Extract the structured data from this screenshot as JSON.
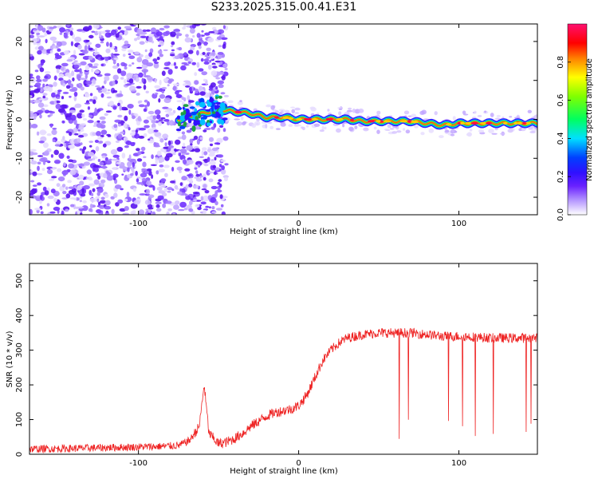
{
  "title": "S233.2025.315.00.41.E31",
  "colors": {
    "snr_line": "#ee2222",
    "spectrogram_ridge": "#22cc44"
  },
  "chart_data": [
    {
      "type": "heatmap",
      "xlabel": "Height of straight line (km)",
      "ylabel": "Frequency (Hz)",
      "xlim": [
        -168,
        149
      ],
      "ylim": [
        -24.5,
        24.5
      ],
      "xticks": [
        -100,
        0,
        100
      ],
      "yticks": [
        -20,
        -10,
        0,
        10,
        20
      ],
      "colorbar": {
        "label": "Normalized spectral amplitude",
        "range": [
          0.0,
          1.0
        ],
        "ticks": [
          0.0,
          0.2,
          0.4,
          0.6,
          0.8
        ],
        "colormap": [
          "#ffffff",
          "#a070ff",
          "#4400ff",
          "#0000ff",
          "#00ffff",
          "#00ff00",
          "#ffff00",
          "#ff0000",
          "#ff0080"
        ]
      },
      "ridge": {
        "x": [
          -75,
          -60,
          -50,
          -40,
          -30,
          -20,
          -10,
          0,
          10,
          20,
          30,
          40,
          50,
          60,
          70,
          80,
          90,
          100,
          110,
          120,
          130,
          140,
          149
        ],
        "frequency": [
          0,
          1.5,
          2.5,
          2,
          1.5,
          0.5,
          0.5,
          0,
          0,
          0,
          0,
          -0.5,
          -0.5,
          -0.5,
          -0.5,
          -1,
          -1.5,
          -1,
          -1,
          -1,
          -1,
          -1,
          -1
        ]
      },
      "noise_region_x": [
        -168,
        -45
      ]
    },
    {
      "type": "line",
      "xlabel": "Height of straight line (km)",
      "ylabel": "SNR (10 * v/v)",
      "xlim": [
        -168,
        149
      ],
      "ylim": [
        0,
        550
      ],
      "xticks": [
        -100,
        0,
        100
      ],
      "yticks": [
        0,
        100,
        200,
        300,
        400,
        500
      ],
      "series": [
        {
          "x": [
            -168,
            -150,
            -130,
            -110,
            -90,
            -75,
            -68,
            -62,
            -59,
            -56,
            -50,
            -45,
            -40,
            -35,
            -30,
            -25,
            -20,
            -15,
            -10,
            -5,
            0,
            5,
            10,
            15,
            20,
            25,
            30,
            40,
            50,
            60,
            70,
            80,
            90,
            100,
            110,
            120,
            130,
            140,
            149
          ],
          "values": [
            15,
            16,
            18,
            20,
            22,
            25,
            40,
            80,
            200,
            60,
            30,
            35,
            45,
            60,
            80,
            95,
            110,
            120,
            125,
            130,
            140,
            170,
            220,
            270,
            300,
            320,
            335,
            345,
            350,
            350,
            350,
            345,
            340,
            340,
            338,
            335,
            335,
            335,
            335
          ]
        }
      ]
    }
  ]
}
